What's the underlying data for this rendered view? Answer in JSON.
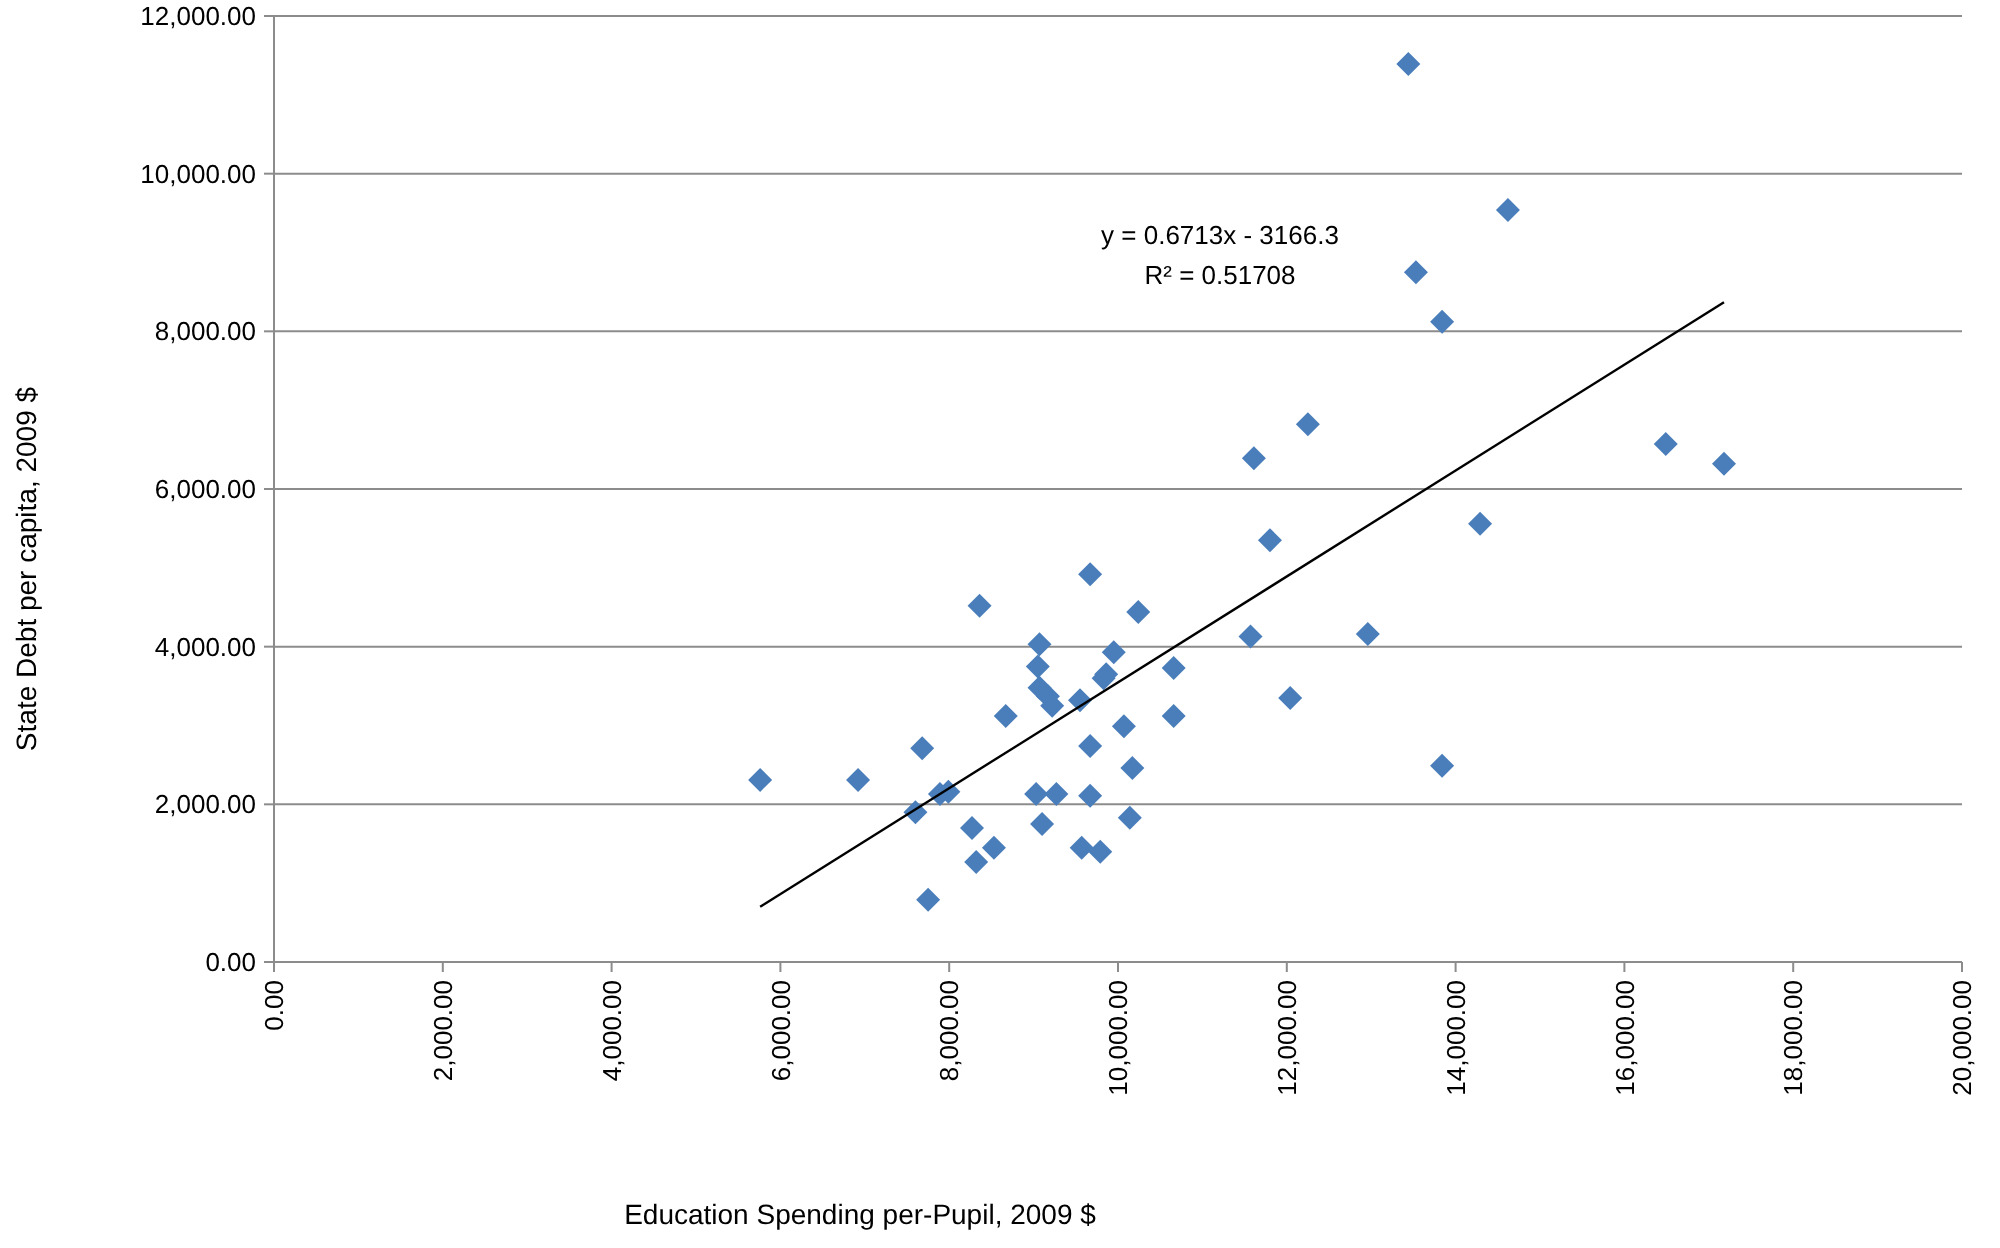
{
  "chart_data": {
    "type": "scatter",
    "xlabel": "Education Spending per-Pupil, 2009 $",
    "ylabel": "State Debt per capita, 2009 $",
    "xlim": [
      0,
      20000
    ],
    "ylim": [
      0,
      12000
    ],
    "xticks": [
      {
        "value": 0,
        "label": "0.00"
      },
      {
        "value": 2000,
        "label": "2,000.00"
      },
      {
        "value": 4000,
        "label": "4,000.00"
      },
      {
        "value": 6000,
        "label": "6,000.00"
      },
      {
        "value": 8000,
        "label": "8,000.00"
      },
      {
        "value": 10000,
        "label": "10,000.00"
      },
      {
        "value": 12000,
        "label": "12,000.00"
      },
      {
        "value": 14000,
        "label": "14,000.00"
      },
      {
        "value": 16000,
        "label": "16,000.00"
      },
      {
        "value": 18000,
        "label": "18,000.00"
      },
      {
        "value": 20000,
        "label": "20,000.00"
      }
    ],
    "yticks": [
      {
        "value": 0,
        "label": "0.00"
      },
      {
        "value": 2000,
        "label": "2,000.00"
      },
      {
        "value": 4000,
        "label": "4,000.00"
      },
      {
        "value": 6000,
        "label": "6,000.00"
      },
      {
        "value": 8000,
        "label": "8,000.00"
      },
      {
        "value": 10000,
        "label": "10,000.00"
      },
      {
        "value": 12000,
        "label": "12,000.00"
      }
    ],
    "grid": "y",
    "annotations": [
      "y = 0.6713x - 3166.3",
      "R² = 0.51708"
    ],
    "series": [
      {
        "marker": "diamond",
        "color": "#4a7ebb",
        "x": [
          5760,
          6920,
          7680,
          7600,
          7750,
          7890,
          7990,
          8270,
          8320,
          8360,
          8530,
          8670,
          9030,
          9070,
          9050,
          9070,
          9170,
          9220,
          9100,
          9270,
          9550,
          9670,
          9670,
          9670,
          9570,
          9790,
          9860,
          9830,
          9950,
          10070,
          10170,
          10140,
          10240,
          10660,
          10660,
          11610,
          12250,
          11800,
          11570,
          12960,
          12040,
          13840,
          14290,
          16490,
          17180,
          13440,
          14620,
          13530,
          13840
        ],
        "values": [
          2310,
          2310,
          2710,
          1900,
          790,
          2130,
          2160,
          1700,
          1270,
          4520,
          1450,
          3120,
          2130,
          4030,
          3750,
          3480,
          3370,
          3250,
          1750,
          2130,
          3320,
          4920,
          2740,
          2110,
          1450,
          1400,
          3650,
          3600,
          3930,
          2990,
          2460,
          1830,
          4440,
          3730,
          3120,
          6390,
          6820,
          5350,
          4130,
          4160,
          3350,
          2490,
          5560,
          6570,
          6320,
          11390,
          9540,
          8750,
          8120
        ]
      },
      {
        "type": "line",
        "marker": "none",
        "line_style": "solid",
        "color": "#000000",
        "x": [
          5760,
          17180
        ],
        "values": [
          700,
          8370
        ]
      }
    ]
  }
}
